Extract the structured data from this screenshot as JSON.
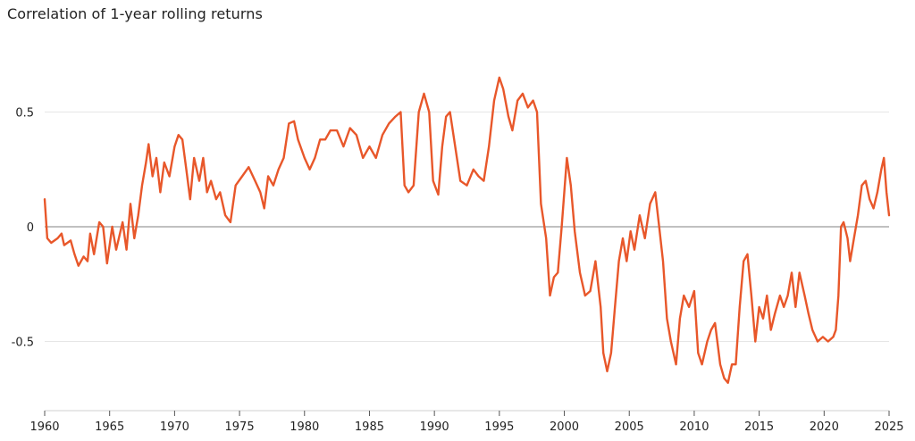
{
  "chart_data": {
    "type": "line",
    "title": "Correlation of 1-year rolling returns",
    "xlabel": "",
    "ylabel": "",
    "xlim": [
      1960,
      2025
    ],
    "ylim": [
      -0.8,
      0.8
    ],
    "grid": "horizontal",
    "x_ticks": [
      "1960",
      "1965",
      "1970",
      "1975",
      "1980",
      "1985",
      "1990",
      "1995",
      "2000",
      "2005",
      "2010",
      "2015",
      "2020",
      "2025"
    ],
    "y_ticks": [
      {
        "value": 0.5,
        "label": "0.5"
      },
      {
        "value": 0,
        "label": "0"
      },
      {
        "value": -0.5,
        "label": "-0.5"
      }
    ],
    "colors": {
      "line": "#e8572a",
      "grid": "#e6e6e6",
      "zero_line": "#9a9a9a"
    },
    "series": [
      {
        "name": "",
        "points": [
          [
            1960.0,
            0.12
          ],
          [
            1960.2,
            -0.05
          ],
          [
            1960.5,
            -0.07
          ],
          [
            1961.0,
            -0.05
          ],
          [
            1961.3,
            -0.03
          ],
          [
            1961.5,
            -0.08
          ],
          [
            1962.0,
            -0.06
          ],
          [
            1962.3,
            -0.12
          ],
          [
            1962.6,
            -0.17
          ],
          [
            1963.0,
            -0.13
          ],
          [
            1963.3,
            -0.15
          ],
          [
            1963.5,
            -0.03
          ],
          [
            1963.8,
            -0.12
          ],
          [
            1964.2,
            0.02
          ],
          [
            1964.5,
            0.0
          ],
          [
            1964.8,
            -0.16
          ],
          [
            1965.2,
            0.0
          ],
          [
            1965.5,
            -0.1
          ],
          [
            1966.0,
            0.02
          ],
          [
            1966.3,
            -0.1
          ],
          [
            1966.6,
            0.1
          ],
          [
            1966.9,
            -0.05
          ],
          [
            1967.2,
            0.05
          ],
          [
            1967.5,
            0.18
          ],
          [
            1967.8,
            0.28
          ],
          [
            1968.0,
            0.36
          ],
          [
            1968.3,
            0.22
          ],
          [
            1968.6,
            0.3
          ],
          [
            1968.9,
            0.15
          ],
          [
            1969.2,
            0.28
          ],
          [
            1969.6,
            0.22
          ],
          [
            1970.0,
            0.35
          ],
          [
            1970.3,
            0.4
          ],
          [
            1970.6,
            0.38
          ],
          [
            1970.9,
            0.25
          ],
          [
            1971.2,
            0.12
          ],
          [
            1971.5,
            0.3
          ],
          [
            1971.9,
            0.2
          ],
          [
            1972.2,
            0.3
          ],
          [
            1972.5,
            0.15
          ],
          [
            1972.8,
            0.2
          ],
          [
            1973.2,
            0.12
          ],
          [
            1973.5,
            0.15
          ],
          [
            1973.9,
            0.05
          ],
          [
            1974.3,
            0.02
          ],
          [
            1974.7,
            0.18
          ],
          [
            1975.2,
            0.22
          ],
          [
            1975.7,
            0.26
          ],
          [
            1976.2,
            0.2
          ],
          [
            1976.6,
            0.15
          ],
          [
            1976.9,
            0.08
          ],
          [
            1977.2,
            0.22
          ],
          [
            1977.6,
            0.18
          ],
          [
            1978.0,
            0.25
          ],
          [
            1978.4,
            0.3
          ],
          [
            1978.8,
            0.45
          ],
          [
            1979.2,
            0.46
          ],
          [
            1979.5,
            0.38
          ],
          [
            1980.0,
            0.3
          ],
          [
            1980.4,
            0.25
          ],
          [
            1980.8,
            0.3
          ],
          [
            1981.2,
            0.38
          ],
          [
            1981.6,
            0.38
          ],
          [
            1982.0,
            0.42
          ],
          [
            1982.5,
            0.42
          ],
          [
            1983.0,
            0.35
          ],
          [
            1983.5,
            0.43
          ],
          [
            1984.0,
            0.4
          ],
          [
            1984.5,
            0.3
          ],
          [
            1985.0,
            0.35
          ],
          [
            1985.5,
            0.3
          ],
          [
            1986.0,
            0.4
          ],
          [
            1986.5,
            0.45
          ],
          [
            1987.0,
            0.48
          ],
          [
            1987.4,
            0.5
          ],
          [
            1987.7,
            0.18
          ],
          [
            1988.0,
            0.15
          ],
          [
            1988.4,
            0.18
          ],
          [
            1988.8,
            0.5
          ],
          [
            1989.2,
            0.58
          ],
          [
            1989.6,
            0.5
          ],
          [
            1989.9,
            0.2
          ],
          [
            1990.3,
            0.14
          ],
          [
            1990.6,
            0.35
          ],
          [
            1990.9,
            0.48
          ],
          [
            1991.2,
            0.5
          ],
          [
            1991.6,
            0.35
          ],
          [
            1992.0,
            0.2
          ],
          [
            1992.5,
            0.18
          ],
          [
            1993.0,
            0.25
          ],
          [
            1993.4,
            0.22
          ],
          [
            1993.8,
            0.2
          ],
          [
            1994.2,
            0.35
          ],
          [
            1994.6,
            0.55
          ],
          [
            1995.0,
            0.65
          ],
          [
            1995.3,
            0.6
          ],
          [
            1995.7,
            0.48
          ],
          [
            1996.0,
            0.42
          ],
          [
            1996.4,
            0.55
          ],
          [
            1996.8,
            0.58
          ],
          [
            1997.2,
            0.52
          ],
          [
            1997.6,
            0.55
          ],
          [
            1997.9,
            0.5
          ],
          [
            1998.2,
            0.1
          ],
          [
            1998.6,
            -0.05
          ],
          [
            1998.9,
            -0.3
          ],
          [
            1999.2,
            -0.22
          ],
          [
            1999.5,
            -0.2
          ],
          [
            1999.8,
            0.0
          ],
          [
            2000.2,
            0.3
          ],
          [
            2000.5,
            0.18
          ],
          [
            2000.8,
            -0.02
          ],
          [
            2001.2,
            -0.2
          ],
          [
            2001.6,
            -0.3
          ],
          [
            2002.0,
            -0.28
          ],
          [
            2002.4,
            -0.15
          ],
          [
            2002.8,
            -0.35
          ],
          [
            2003.0,
            -0.55
          ],
          [
            2003.3,
            -0.63
          ],
          [
            2003.6,
            -0.55
          ],
          [
            2003.9,
            -0.35
          ],
          [
            2004.2,
            -0.15
          ],
          [
            2004.5,
            -0.05
          ],
          [
            2004.8,
            -0.15
          ],
          [
            2005.1,
            -0.02
          ],
          [
            2005.4,
            -0.1
          ],
          [
            2005.8,
            0.05
          ],
          [
            2006.2,
            -0.05
          ],
          [
            2006.6,
            0.1
          ],
          [
            2007.0,
            0.15
          ],
          [
            2007.3,
            0.0
          ],
          [
            2007.6,
            -0.15
          ],
          [
            2007.9,
            -0.4
          ],
          [
            2008.2,
            -0.5
          ],
          [
            2008.6,
            -0.6
          ],
          [
            2008.9,
            -0.4
          ],
          [
            2009.2,
            -0.3
          ],
          [
            2009.6,
            -0.35
          ],
          [
            2010.0,
            -0.28
          ],
          [
            2010.3,
            -0.55
          ],
          [
            2010.6,
            -0.6
          ],
          [
            2011.0,
            -0.5
          ],
          [
            2011.3,
            -0.45
          ],
          [
            2011.6,
            -0.42
          ],
          [
            2012.0,
            -0.6
          ],
          [
            2012.3,
            -0.66
          ],
          [
            2012.6,
            -0.68
          ],
          [
            2012.9,
            -0.6
          ],
          [
            2013.2,
            -0.6
          ],
          [
            2013.5,
            -0.35
          ],
          [
            2013.8,
            -0.15
          ],
          [
            2014.1,
            -0.12
          ],
          [
            2014.4,
            -0.3
          ],
          [
            2014.7,
            -0.5
          ],
          [
            2015.0,
            -0.35
          ],
          [
            2015.3,
            -0.4
          ],
          [
            2015.6,
            -0.3
          ],
          [
            2015.9,
            -0.45
          ],
          [
            2016.2,
            -0.38
          ],
          [
            2016.6,
            -0.3
          ],
          [
            2016.9,
            -0.35
          ],
          [
            2017.2,
            -0.3
          ],
          [
            2017.5,
            -0.2
          ],
          [
            2017.8,
            -0.35
          ],
          [
            2018.1,
            -0.2
          ],
          [
            2018.5,
            -0.3
          ],
          [
            2018.8,
            -0.38
          ],
          [
            2019.1,
            -0.45
          ],
          [
            2019.5,
            -0.5
          ],
          [
            2019.9,
            -0.48
          ],
          [
            2020.3,
            -0.5
          ],
          [
            2020.7,
            -0.48
          ],
          [
            2020.9,
            -0.45
          ],
          [
            2021.1,
            -0.3
          ],
          [
            2021.3,
            0.0
          ],
          [
            2021.5,
            0.02
          ],
          [
            2021.8,
            -0.05
          ],
          [
            2022.0,
            -0.15
          ],
          [
            2022.3,
            -0.05
          ],
          [
            2022.6,
            0.05
          ],
          [
            2022.9,
            0.18
          ],
          [
            2023.2,
            0.2
          ],
          [
            2023.5,
            0.12
          ],
          [
            2023.8,
            0.08
          ],
          [
            2024.1,
            0.15
          ],
          [
            2024.4,
            0.25
          ],
          [
            2024.6,
            0.3
          ],
          [
            2024.8,
            0.15
          ],
          [
            2025.0,
            0.05
          ]
        ]
      }
    ]
  }
}
